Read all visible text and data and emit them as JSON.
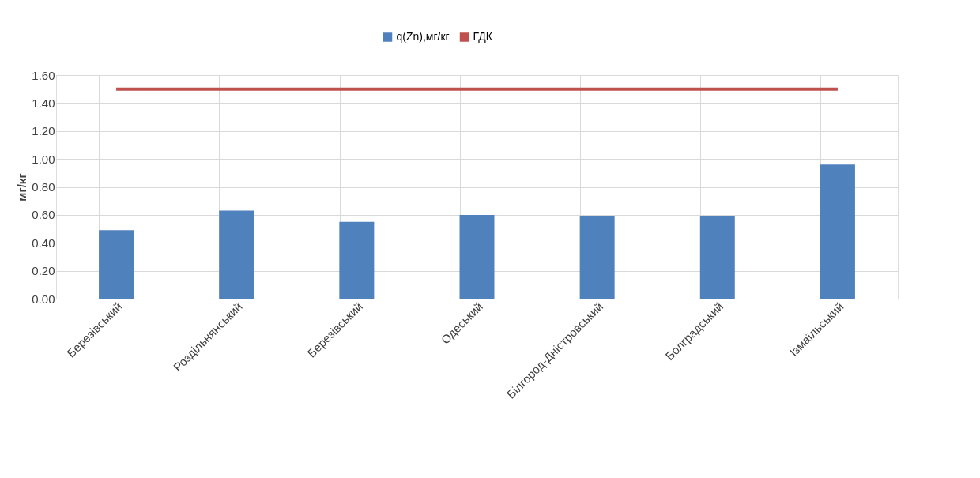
{
  "chart_data": {
    "type": "bar",
    "ylabel": "мг/кг",
    "categories": [
      "Березівський",
      "Роздільнянський",
      "Березівський",
      "Одеський",
      "Білгород-Дністровський",
      "Болградський",
      "Ізмаїльський"
    ],
    "series": [
      {
        "name": "q(Zn),мг/кг",
        "color": "#4f81bd",
        "values": [
          0.49,
          0.63,
          0.55,
          0.6,
          0.59,
          0.59,
          0.96
        ]
      },
      {
        "name": "ГДК",
        "type": "line",
        "color": "#c0504d",
        "values": [
          1.5,
          1.5,
          1.5,
          1.5,
          1.5,
          1.5,
          1.5
        ]
      }
    ],
    "ylim": [
      0,
      1.6
    ],
    "yticks": [
      {
        "value": 0,
        "label": "0.00"
      },
      {
        "value": 0.2,
        "label": "0.20"
      },
      {
        "value": 0.4,
        "label": "0.40"
      },
      {
        "value": 0.6,
        "label": "0.60"
      },
      {
        "value": 0.8,
        "label": "0.80"
      },
      {
        "value": 1.0,
        "label": "1.00"
      },
      {
        "value": 1.2,
        "label": "1.20"
      },
      {
        "value": 1.4,
        "label": "1.40"
      },
      {
        "value": 1.6,
        "label": "1.60"
      }
    ],
    "grid": true,
    "legend": "top"
  }
}
